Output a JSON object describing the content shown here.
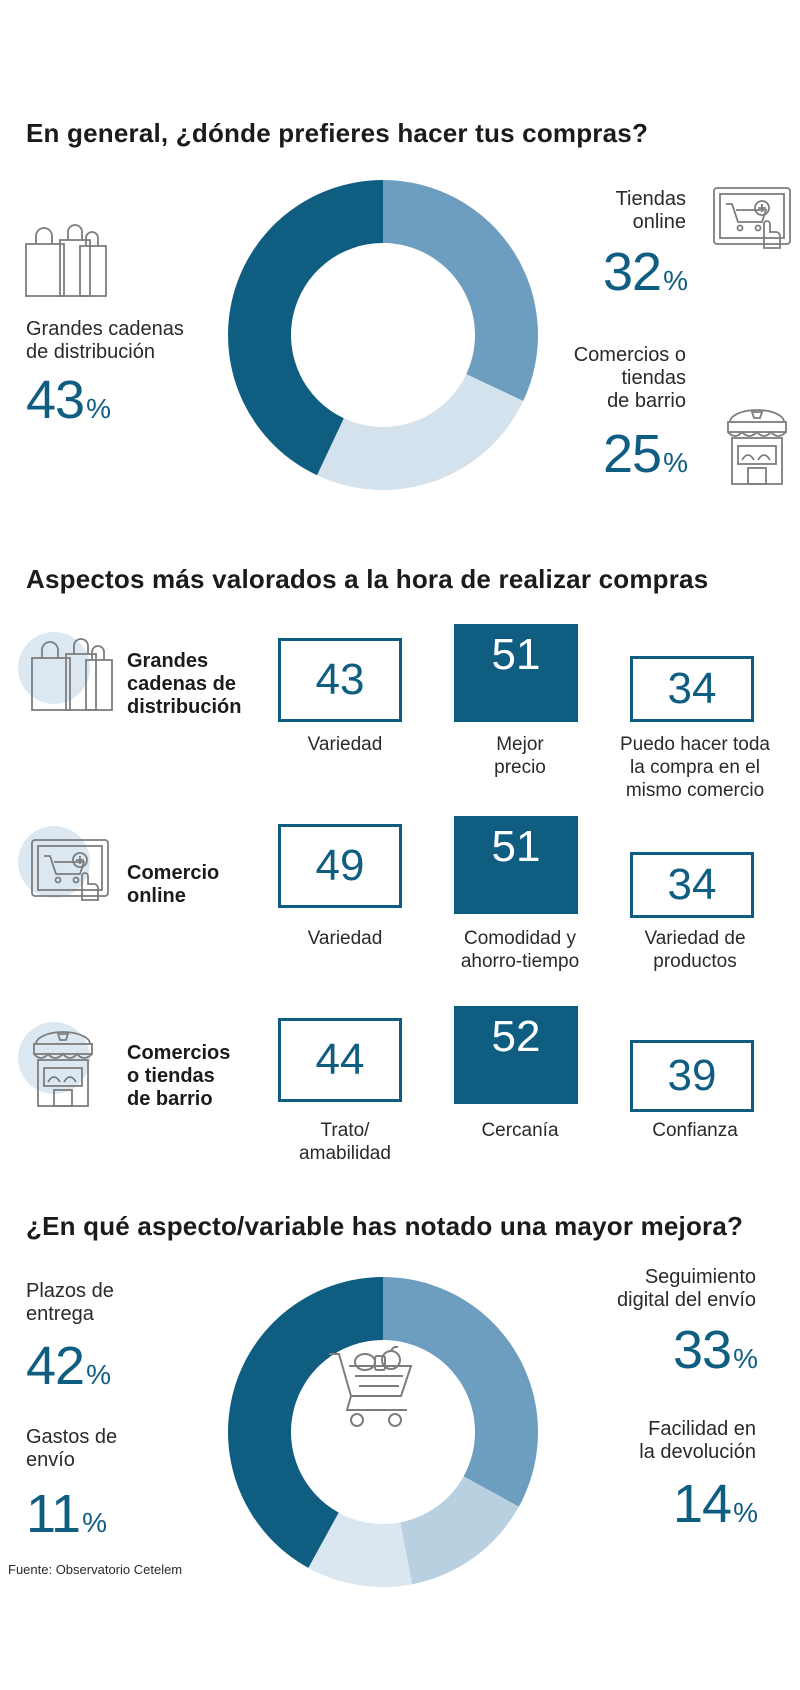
{
  "chart_data": [
    {
      "type": "pie",
      "title": "En general, ¿dónde prefieres hacer tus compras?",
      "slices": [
        {
          "label": "Tiendas online",
          "value": 32,
          "color": "#6e9ebf"
        },
        {
          "label": "Comercios o tiendas de barrio",
          "value": 25,
          "color": "#d3e2ed"
        },
        {
          "label": "Grandes cadenas de distribución",
          "value": 43,
          "color": "#0f5e82"
        }
      ]
    },
    {
      "type": "table",
      "title": "Aspectos más valorados a la hora de realizar compras",
      "rows": [
        {
          "category": "Grandes cadenas de distribución",
          "items": [
            {
              "label": "Variedad",
              "value": 43
            },
            {
              "label": "Mejor precio",
              "value": 51,
              "highlight": true
            },
            {
              "label": "Puedo hacer toda la compra en el mismo comercio",
              "value": 34
            }
          ]
        },
        {
          "category": "Comercio online",
          "items": [
            {
              "label": "Variedad",
              "value": 49
            },
            {
              "label": "Comodidad y ahorro-tiempo",
              "value": 51,
              "highlight": true
            },
            {
              "label": "Variedad de productos",
              "value": 34
            }
          ]
        },
        {
          "category": "Comercios o tiendas de barrio",
          "items": [
            {
              "label": "Trato/ amabilidad",
              "value": 44
            },
            {
              "label": "Cercanía",
              "value": 52,
              "highlight": true
            },
            {
              "label": "Confianza",
              "value": 39
            }
          ]
        }
      ]
    },
    {
      "type": "pie",
      "title": "¿En qué aspecto/variable has notado una mayor mejora?",
      "slices": [
        {
          "label": "Seguimiento digital del envío",
          "value": 33,
          "color": "#6e9ebf"
        },
        {
          "label": "Facilidad en la devolución",
          "value": 14,
          "color": "#b9d0e1"
        },
        {
          "label": "Gastos de envío",
          "value": 11,
          "color": "#dbe7f0"
        },
        {
          "label": "Plazos de entrega",
          "value": 42,
          "color": "#0f5e82"
        }
      ]
    }
  ],
  "text": {
    "q1": {
      "title": "En general, ¿dónde prefieres hacer tus compras?",
      "grandes_line1": "Grandes cadenas",
      "grandes_line2": "de distribución",
      "grandes_value": "43",
      "online_line1": "Tiendas",
      "online_line2": "online",
      "online_value": "32",
      "barrio_line1": "Comercios o",
      "barrio_line2": "tiendas",
      "barrio_line3": "de barrio",
      "barrio_value": "25",
      "pct": "%"
    },
    "q2": {
      "title": "Aspectos más valorados a la hora de realizar compras",
      "row1": {
        "cat1": "Grandes",
        "cat2": "cadenas de",
        "cat3": "distribución",
        "v1": "43",
        "v2": "51",
        "v3": "34",
        "c1a": "Variedad",
        "c2a": "Mejor",
        "c2b": "precio",
        "c3a": "Puedo hacer toda",
        "c3b": "la compra en el",
        "c3c": "mismo comercio"
      },
      "row2": {
        "cat1": "Comercio",
        "cat2": "online",
        "v1": "49",
        "v2": "51",
        "v3": "34",
        "c1a": "Variedad",
        "c2a": "Comodidad y",
        "c2b": "ahorro-tiempo",
        "c3a": "Variedad de",
        "c3b": "productos"
      },
      "row3": {
        "cat1": "Comercios",
        "cat2": "o tiendas",
        "cat3": "de barrio",
        "v1": "44",
        "v2": "52",
        "v3": "39",
        "c1a": "Trato/",
        "c1b": "amabilidad",
        "c2a": "Cercanía",
        "c3a": "Confianza"
      }
    },
    "q3": {
      "title": "¿En qué aspecto/variable has notado una mayor mejora?",
      "plazos_line1": "Plazos de",
      "plazos_line2": "entrega",
      "plazos_value": "42",
      "gastos_line1": "Gastos de",
      "gastos_line2": "envío",
      "gastos_value": "11",
      "seg_line1": "Seguimiento",
      "seg_line2": "digital del envío",
      "seg_value": "33",
      "fac_line1": "Facilidad en",
      "fac_line2": "la devolución",
      "fac_value": "14",
      "pct": "%"
    },
    "source": "Fuente: Observatorio Cetelem"
  },
  "icons": [
    "shopping-bags-icon",
    "online-shop-tablet-icon",
    "storefront-icon",
    "shopping-cart-icon"
  ],
  "colors": {
    "primary": "#0f5e82",
    "mid": "#6e9ebf",
    "light": "#d3e2ed",
    "icon_circle": "#dbe8f2"
  }
}
